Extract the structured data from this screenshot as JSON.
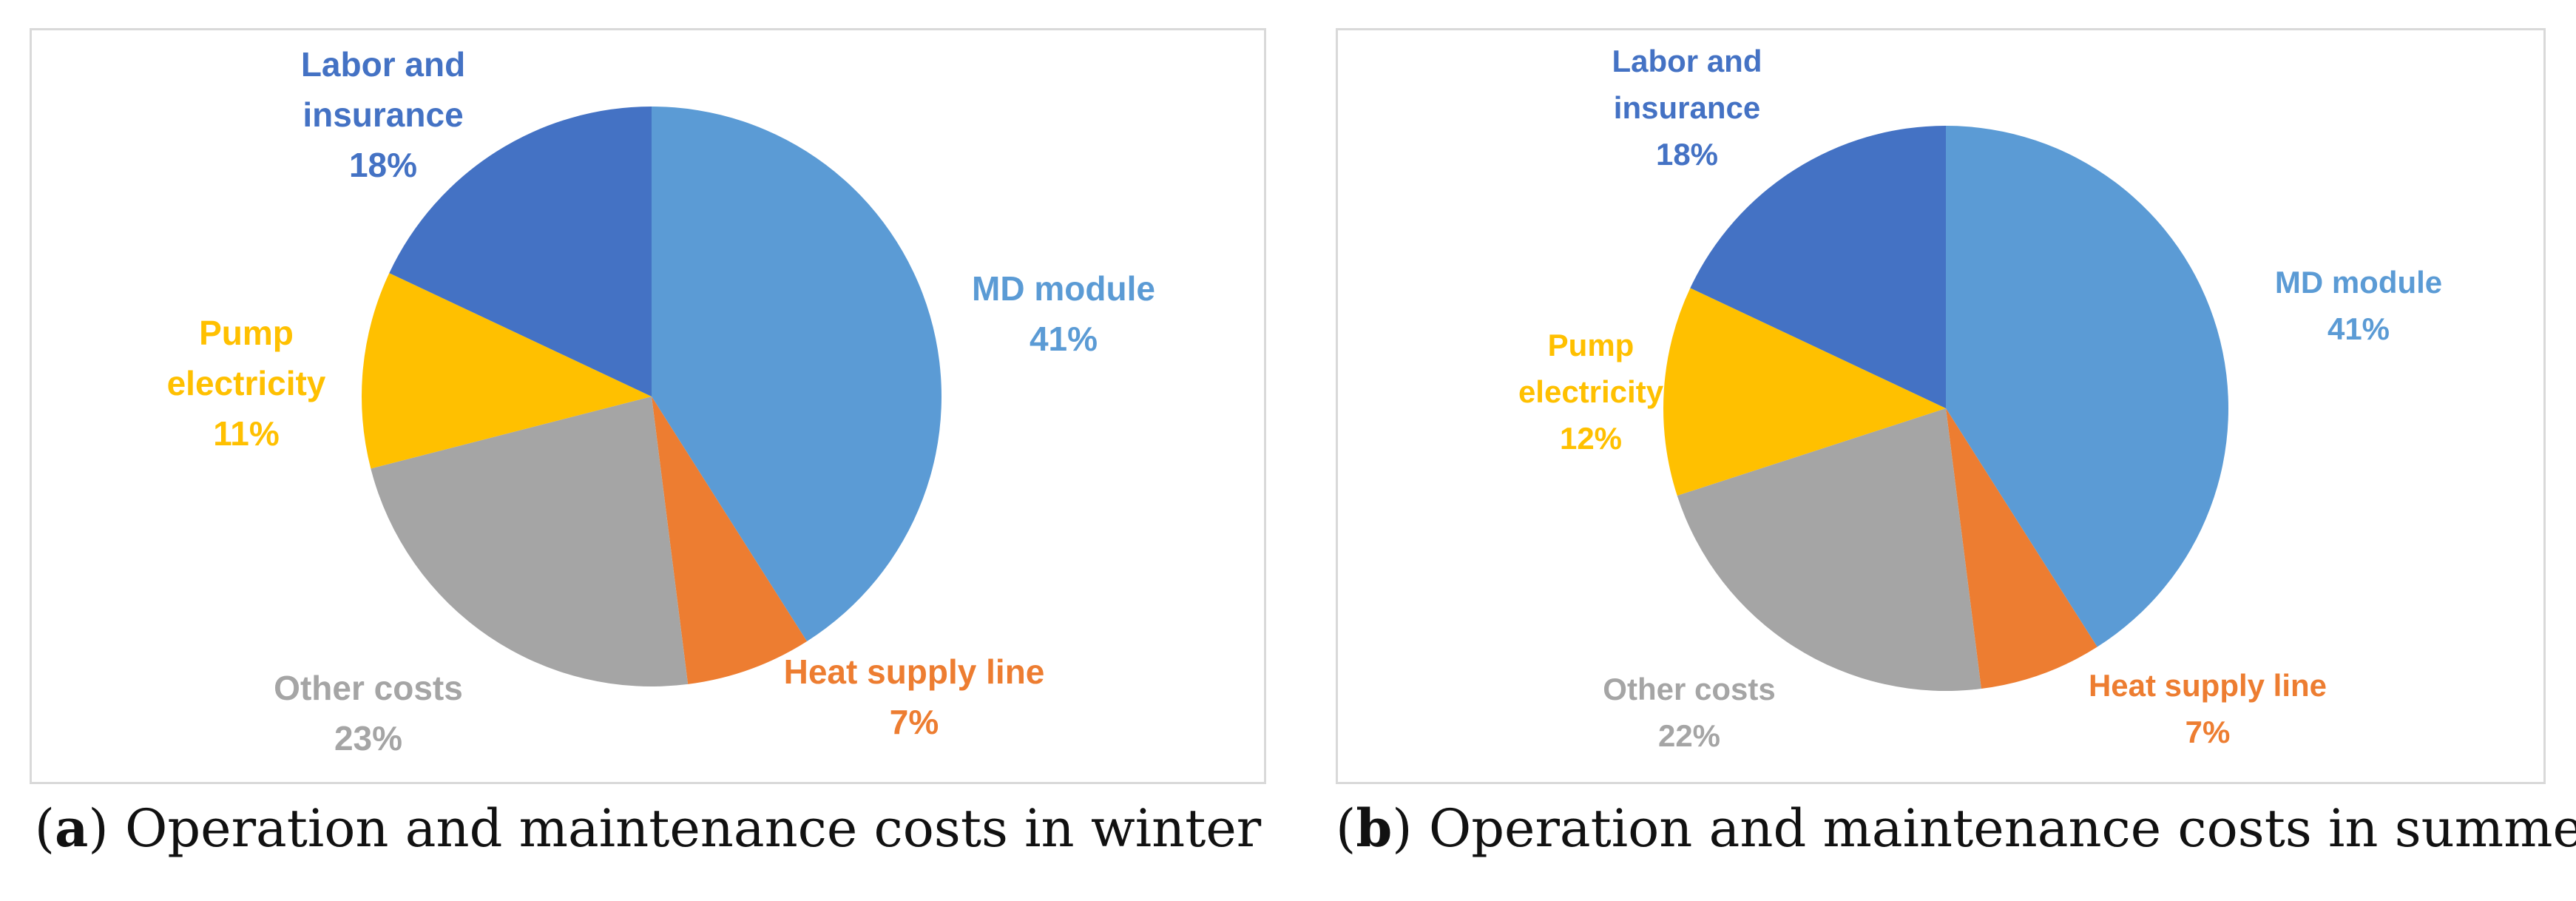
{
  "colors": {
    "MD module": "#5b9bd5",
    "Heat supply line": "#ed7d31",
    "Other costs": "#a5a5a5",
    "Pump electricity": "#ffc000",
    "Labor and insurance": "#4472c4"
  },
  "chart_data": [
    {
      "type": "pie",
      "title": "Operation and maintenance costs in winter",
      "caption_letter": "a",
      "slices": [
        {
          "label_lines": [
            "MD module"
          ],
          "name": "MD module",
          "value": 41,
          "pct_text": "41%"
        },
        {
          "label_lines": [
            "Heat supply line"
          ],
          "name": "Heat supply line",
          "value": 7,
          "pct_text": "7%"
        },
        {
          "label_lines": [
            "Other costs"
          ],
          "name": "Other costs",
          "value": 23,
          "pct_text": "23%"
        },
        {
          "label_lines": [
            "Pump",
            "electricity"
          ],
          "name": "Pump electricity",
          "value": 11,
          "pct_text": "11%"
        },
        {
          "label_lines": [
            "Labor and",
            "insurance"
          ],
          "name": "Labor and insurance",
          "value": 18,
          "pct_text": "18%"
        }
      ]
    },
    {
      "type": "pie",
      "title": "Operation and maintenance costs in summer",
      "caption_letter": "b",
      "slices": [
        {
          "label_lines": [
            "MD module"
          ],
          "name": "MD module",
          "value": 41,
          "pct_text": "41%"
        },
        {
          "label_lines": [
            "Heat supply line"
          ],
          "name": "Heat supply line",
          "value": 7,
          "pct_text": "7%"
        },
        {
          "label_lines": [
            "Other costs"
          ],
          "name": "Other costs",
          "value": 22,
          "pct_text": "22%"
        },
        {
          "label_lines": [
            "Pump",
            "electricity"
          ],
          "name": "Pump electricity",
          "value": 12,
          "pct_text": "12%"
        },
        {
          "label_lines": [
            "Labor and",
            "insurance"
          ],
          "name": "Labor and insurance",
          "value": 18,
          "pct_text": "18%"
        }
      ]
    }
  ]
}
